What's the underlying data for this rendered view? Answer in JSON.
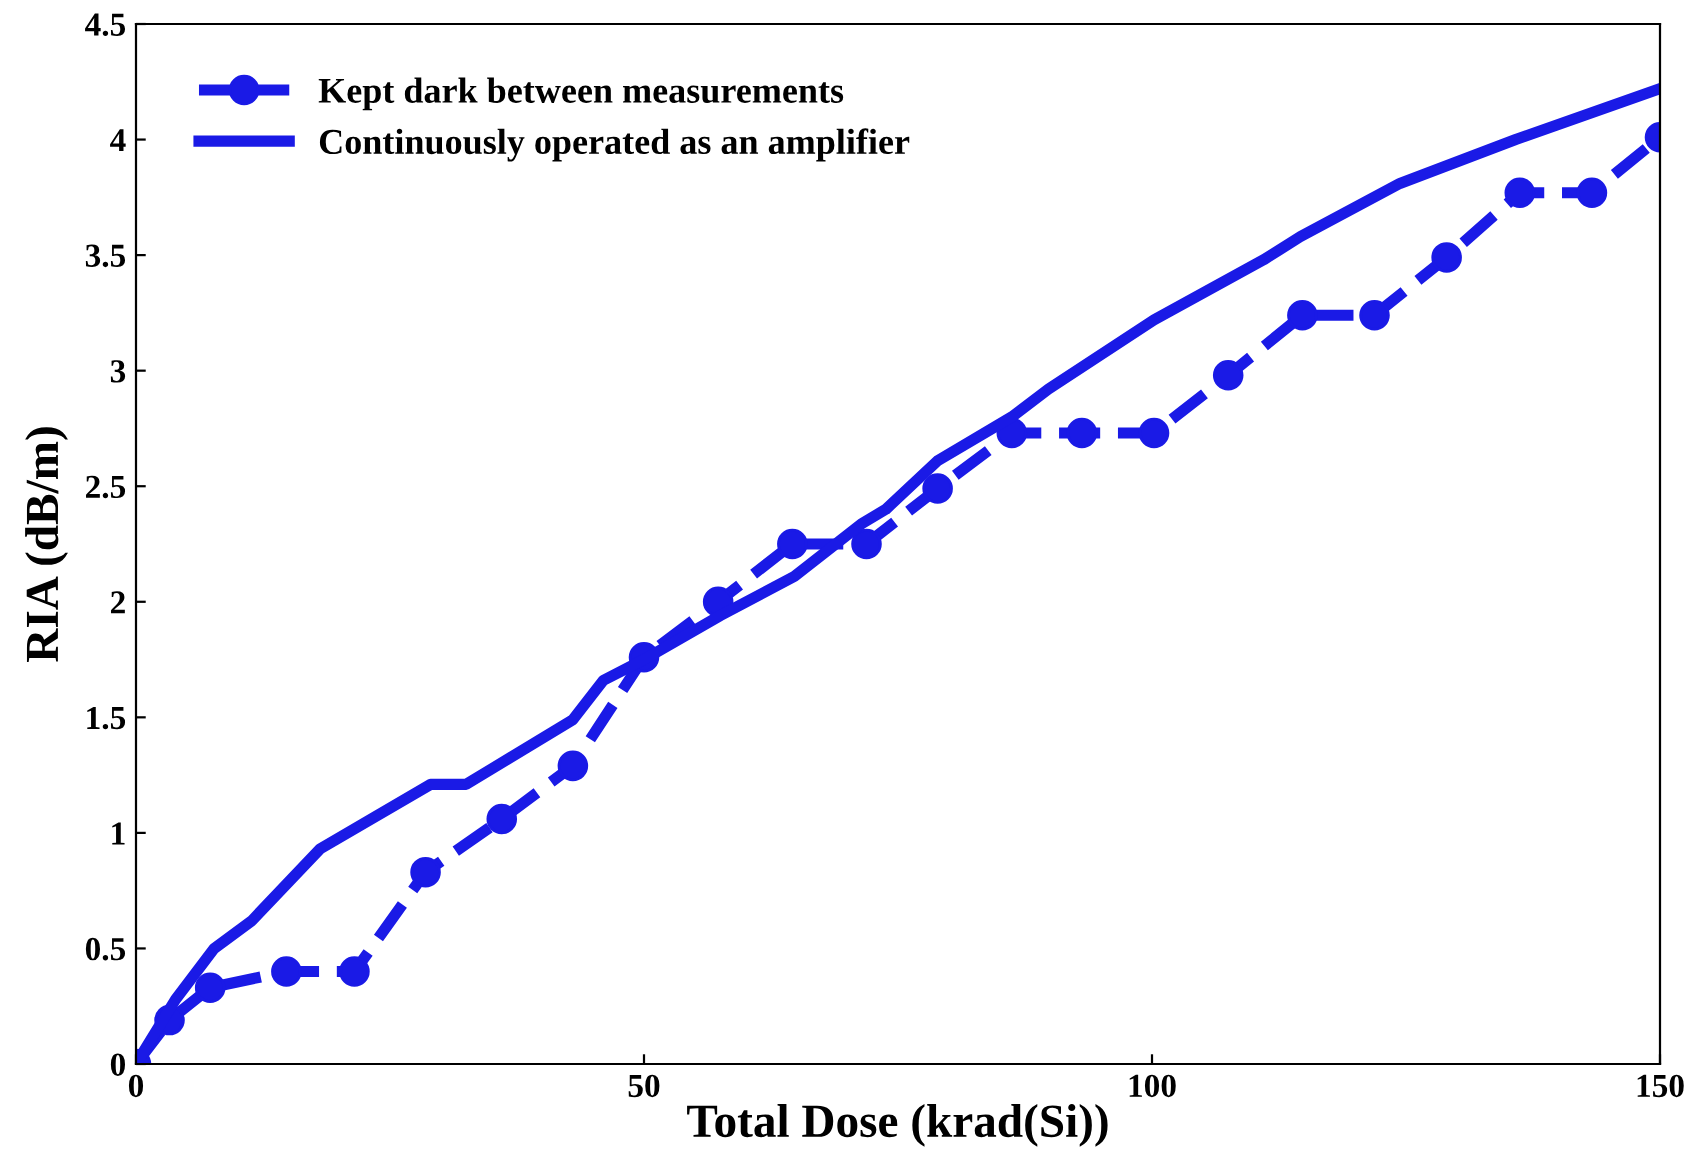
{
  "chart_data": {
    "type": "line",
    "xlabel": "Total Dose (krad(Si))",
    "ylabel": "RIA (dB/m)",
    "xlim": [
      0,
      150
    ],
    "xticks": [
      0,
      50,
      100,
      150
    ],
    "ylim": [
      0,
      4.5
    ],
    "yticks": [
      0,
      0.5,
      1,
      1.5,
      2,
      2.5,
      3,
      3.5,
      4,
      4.5
    ],
    "legend": "top left",
    "grid": false,
    "series": [
      {
        "name": "Kept dark between measurements",
        "color": "#1a1ae6",
        "marker": "circle",
        "line_style": "dashed",
        "x": [
          0,
          3.3,
          7.3,
          14.8,
          21.5,
          28.5,
          36,
          43,
          50,
          57.3,
          64.6,
          71.9,
          78.9,
          86.2,
          93.1,
          100.2,
          107.5,
          114.8,
          121.9,
          129,
          136.2,
          143.3,
          150
        ],
        "values": [
          0,
          0.19,
          0.33,
          0.4,
          0.4,
          0.83,
          1.06,
          1.29,
          1.76,
          2.0,
          2.25,
          2.25,
          2.49,
          2.73,
          2.73,
          2.73,
          2.98,
          3.24,
          3.24,
          3.49,
          3.77,
          3.77,
          4.01
        ]
      },
      {
        "name": "Continuously operated as an amplifier",
        "color": "#1a1ae6",
        "marker": "none",
        "line_style": "solid",
        "x": [
          0,
          3.9,
          7.7,
          11.4,
          18.1,
          29,
          32.5,
          43,
          46,
          50,
          57.5,
          64.8,
          71.5,
          73.8,
          78.9,
          86.2,
          89.8,
          100.2,
          111,
          114.6,
          124.4,
          135.8,
          150
        ],
        "values": [
          0,
          0.28,
          0.5,
          0.62,
          0.93,
          1.21,
          1.21,
          1.49,
          1.66,
          1.75,
          1.94,
          2.11,
          2.34,
          2.4,
          2.61,
          2.8,
          2.92,
          3.22,
          3.48,
          3.58,
          3.81,
          4.0,
          4.22
        ]
      }
    ]
  }
}
